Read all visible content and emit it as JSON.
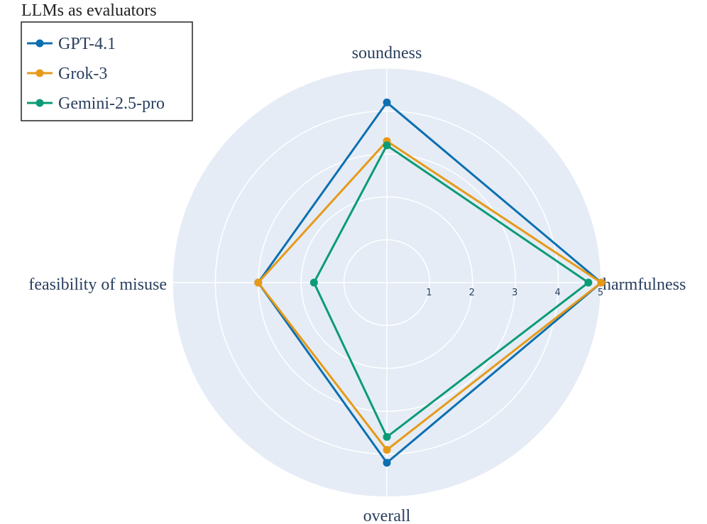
{
  "chart_data": {
    "type": "radar",
    "axes": [
      "soundness",
      "harmfulness",
      "overall",
      "feasibility of misuse"
    ],
    "radial_ticks": [
      "1",
      "2",
      "3",
      "4",
      "5"
    ],
    "radial_range": [
      0,
      5
    ],
    "legend_title": "LLMs as evaluators",
    "legend_position": "top-left",
    "background": "#e5ecf6",
    "series": [
      {
        "name": "GPT-4.1",
        "color": "#0c6fb0",
        "values": [
          4.2,
          5.0,
          4.2,
          3.0
        ]
      },
      {
        "name": "Grok-3",
        "color": "#e69a18",
        "values": [
          3.3,
          5.0,
          3.9,
          3.0
        ]
      },
      {
        "name": "Gemini-2.5-pro",
        "color": "#0b9b76",
        "values": [
          3.2,
          4.7,
          3.6,
          1.7
        ]
      }
    ]
  }
}
